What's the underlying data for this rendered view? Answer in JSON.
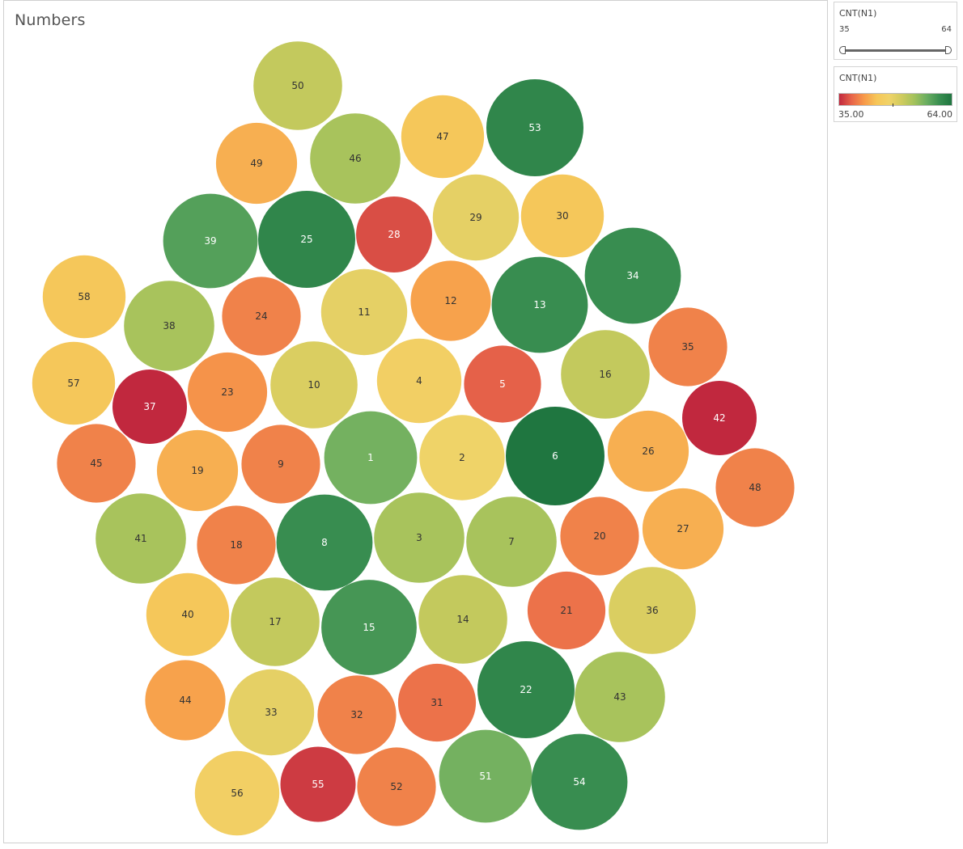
{
  "chart_data": {
    "type": "bubble",
    "title": "Numbers",
    "color_measure": "CNT(N1)",
    "color_range": [
      35,
      64
    ],
    "bubbles": [
      {
        "label": "1",
        "value": 57
      },
      {
        "label": "2",
        "value": 48
      },
      {
        "label": "3",
        "value": 54
      },
      {
        "label": "4",
        "value": 47
      },
      {
        "label": "5",
        "value": 38
      },
      {
        "label": "6",
        "value": 64
      },
      {
        "label": "7",
        "value": 54
      },
      {
        "label": "8",
        "value": 61
      },
      {
        "label": "9",
        "value": 40
      },
      {
        "label": "10",
        "value": 50
      },
      {
        "label": "11",
        "value": 49
      },
      {
        "label": "12",
        "value": 42
      },
      {
        "label": "13",
        "value": 61
      },
      {
        "label": "14",
        "value": 52
      },
      {
        "label": "15",
        "value": 60
      },
      {
        "label": "16",
        "value": 52
      },
      {
        "label": "17",
        "value": 52
      },
      {
        "label": "18",
        "value": 40
      },
      {
        "label": "19",
        "value": 43
      },
      {
        "label": "20",
        "value": 40
      },
      {
        "label": "21",
        "value": 39
      },
      {
        "label": "22",
        "value": 62
      },
      {
        "label": "23",
        "value": 41
      },
      {
        "label": "24",
        "value": 40
      },
      {
        "label": "25",
        "value": 62
      },
      {
        "label": "26",
        "value": 43
      },
      {
        "label": "27",
        "value": 43
      },
      {
        "label": "28",
        "value": 37
      },
      {
        "label": "29",
        "value": 49
      },
      {
        "label": "30",
        "value": 45
      },
      {
        "label": "31",
        "value": 39
      },
      {
        "label": "32",
        "value": 40
      },
      {
        "label": "33",
        "value": 49
      },
      {
        "label": "34",
        "value": 61
      },
      {
        "label": "35",
        "value": 40
      },
      {
        "label": "36",
        "value": 50
      },
      {
        "label": "37",
        "value": 35
      },
      {
        "label": "38",
        "value": 54
      },
      {
        "label": "39",
        "value": 59
      },
      {
        "label": "40",
        "value": 45
      },
      {
        "label": "41",
        "value": 54
      },
      {
        "label": "42",
        "value": 35
      },
      {
        "label": "43",
        "value": 54
      },
      {
        "label": "44",
        "value": 42
      },
      {
        "label": "45",
        "value": 40
      },
      {
        "label": "46",
        "value": 54
      },
      {
        "label": "47",
        "value": 45
      },
      {
        "label": "48",
        "value": 40
      },
      {
        "label": "49",
        "value": 43
      },
      {
        "label": "50",
        "value": 52
      },
      {
        "label": "51",
        "value": 57
      },
      {
        "label": "52",
        "value": 40
      },
      {
        "label": "53",
        "value": 62
      },
      {
        "label": "54",
        "value": 61
      },
      {
        "label": "55",
        "value": 36
      },
      {
        "label": "56",
        "value": 47
      },
      {
        "label": "57",
        "value": 45
      },
      {
        "label": "58",
        "value": 45
      }
    ]
  },
  "filter_card": {
    "title": "CNT(N1)",
    "min_label": "35",
    "max_label": "64"
  },
  "legend_card": {
    "title": "CNT(N1)",
    "min_label": "35.00",
    "max_label": "64.00"
  },
  "colors": {
    "ramp": [
      "#c1283e",
      "#e8654a",
      "#f79a4a",
      "#f6c658",
      "#f0d368",
      "#cfcb5e",
      "#a3c25c",
      "#6aae61",
      "#3a8f51",
      "#1f7640"
    ]
  }
}
